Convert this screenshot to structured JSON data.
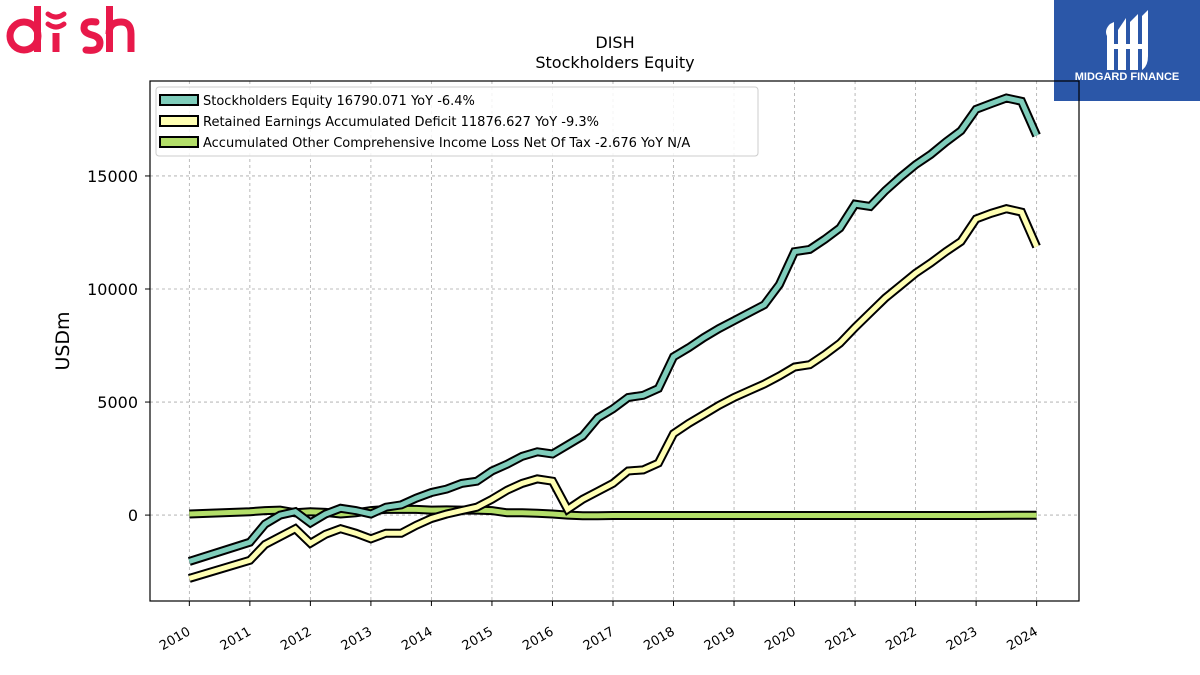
{
  "brand": {
    "left_logo_text": "dish",
    "left_logo_color": "#e8194a",
    "right_logo_text": "MIDGARD FINANCE",
    "right_logo_bg": "#2b57a8"
  },
  "chart_data": {
    "type": "line",
    "title": "DISH",
    "subtitle": "Stockholders  Equity",
    "xlabel": "",
    "ylabel": "USDm",
    "xlim": [
      2009.35,
      2024.7
    ],
    "ylim": [
      -3800,
      19200
    ],
    "yticks": [
      0,
      5000,
      10000,
      15000
    ],
    "xticks": [
      2010,
      2011,
      2012,
      2013,
      2014,
      2015,
      2016,
      2017,
      2018,
      2019,
      2020,
      2021,
      2022,
      2023,
      2024
    ],
    "grid": true,
    "legend_position": "top-left",
    "series": [
      {
        "name": "Stockholders Equity  16790.071 YoY -6.4%",
        "color": "#7fcdbb",
        "x": [
          2010.0,
          2011.0,
          2011.25,
          2011.5,
          2011.75,
          2012.0,
          2012.25,
          2012.5,
          2012.75,
          2013.0,
          2013.25,
          2013.5,
          2013.75,
          2014.0,
          2014.25,
          2014.5,
          2014.75,
          2015.0,
          2015.25,
          2015.5,
          2015.75,
          2016.0,
          2016.25,
          2016.5,
          2016.75,
          2017.0,
          2017.25,
          2017.5,
          2017.75,
          2018.0,
          2018.25,
          2018.5,
          2018.75,
          2019.0,
          2019.25,
          2019.5,
          2019.75,
          2020.0,
          2020.25,
          2020.5,
          2020.75,
          2021.0,
          2021.25,
          2021.5,
          2021.75,
          2022.0,
          2022.25,
          2022.5,
          2022.75,
          2023.0,
          2023.25,
          2023.5,
          2023.75,
          2024.0
        ],
        "values": [
          -2050,
          -1200,
          -400,
          0,
          150,
          -350,
          50,
          300,
          200,
          50,
          350,
          450,
          750,
          1000,
          1150,
          1400,
          1500,
          1950,
          2250,
          2600,
          2800,
          2700,
          3100,
          3500,
          4300,
          4700,
          5200,
          5300,
          5600,
          7000,
          7400,
          7850,
          8250,
          8600,
          8950,
          9300,
          10200,
          11650,
          11750,
          12200,
          12700,
          13750,
          13650,
          14350,
          14950,
          15500,
          15950,
          16500,
          17000,
          17950,
          18200,
          18450,
          18300,
          16790
        ]
      },
      {
        "name": "Retained Earnings Accumulated Deficit  11876.627 YoY -9.3%",
        "color": "#ffffb3",
        "x": [
          2010.0,
          2011.0,
          2011.25,
          2011.5,
          2011.75,
          2012.0,
          2012.25,
          2012.5,
          2012.75,
          2013.0,
          2013.25,
          2013.5,
          2013.75,
          2014.0,
          2014.25,
          2014.5,
          2014.75,
          2015.0,
          2015.25,
          2015.5,
          2015.75,
          2016.0,
          2016.25,
          2016.5,
          2016.75,
          2017.0,
          2017.25,
          2017.5,
          2017.75,
          2018.0,
          2018.25,
          2018.5,
          2018.75,
          2019.0,
          2019.25,
          2019.5,
          2019.75,
          2020.0,
          2020.25,
          2020.5,
          2020.75,
          2021.0,
          2021.25,
          2021.5,
          2021.75,
          2022.0,
          2022.25,
          2022.5,
          2022.75,
          2023.0,
          2023.25,
          2023.5,
          2023.75,
          2024.0
        ],
        "values": [
          -2800,
          -2000,
          -1300,
          -950,
          -600,
          -1250,
          -850,
          -600,
          -800,
          -1050,
          -800,
          -800,
          -450,
          -150,
          50,
          200,
          350,
          700,
          1100,
          1400,
          1600,
          1500,
          250,
          700,
          1050,
          1400,
          1950,
          2000,
          2300,
          3600,
          4050,
          4450,
          4850,
          5200,
          5500,
          5800,
          6150,
          6550,
          6650,
          7100,
          7600,
          8300,
          8950,
          9600,
          10150,
          10700,
          11150,
          11650,
          12100,
          13100,
          13350,
          13550,
          13400,
          11877
        ]
      },
      {
        "name": "Accumulated Other Comprehensive Income Loss Net Of Tax  -2.676 YoY N/A",
        "color": "#b3de69",
        "x": [
          2010.0,
          2011.0,
          2011.25,
          2011.5,
          2011.75,
          2012.0,
          2012.25,
          2012.5,
          2012.75,
          2013.0,
          2013.25,
          2013.5,
          2013.75,
          2014.0,
          2014.25,
          2014.5,
          2014.75,
          2015.0,
          2015.25,
          2015.5,
          2015.75,
          2016.0,
          2016.25,
          2016.5,
          2016.75,
          2017.0,
          2017.5,
          2018.0,
          2019.0,
          2020.0,
          2021.0,
          2022.0,
          2023.0,
          2024.0
        ],
        "values": [
          50,
          150,
          200,
          220,
          100,
          150,
          120,
          50,
          100,
          200,
          250,
          250,
          250,
          220,
          230,
          220,
          220,
          200,
          100,
          100,
          80,
          50,
          0,
          -30,
          -30,
          -20,
          -20,
          -20,
          -20,
          -20,
          -20,
          -20,
          -20,
          -3
        ]
      }
    ]
  }
}
